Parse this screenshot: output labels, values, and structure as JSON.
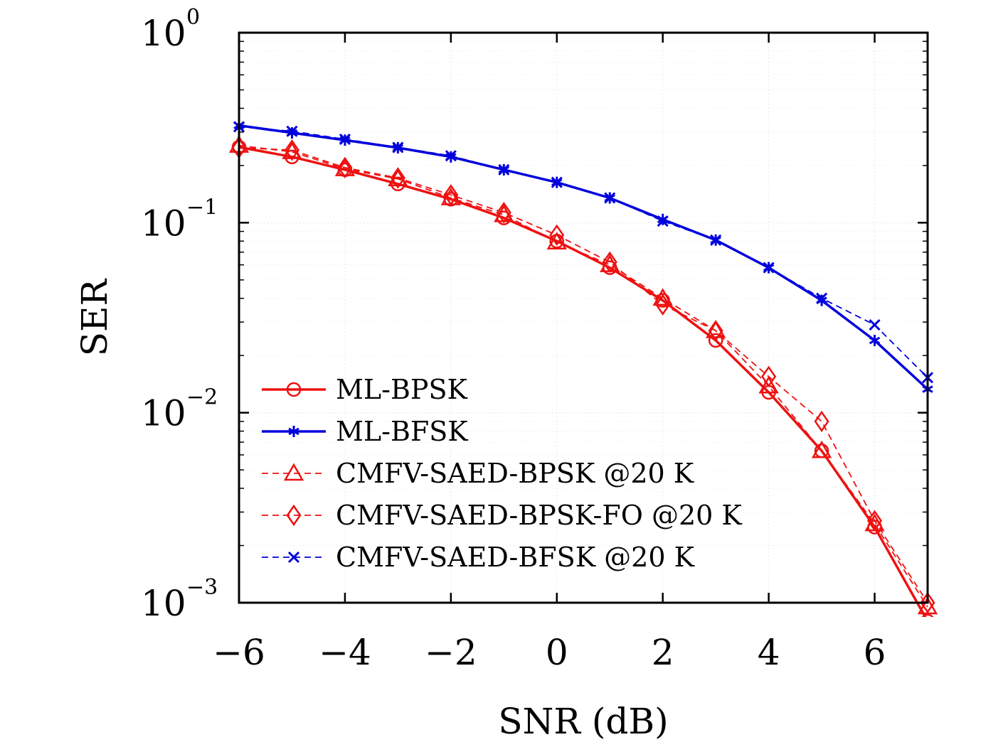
{
  "chart_data": {
    "type": "line",
    "xlabel": "SNR (dB)",
    "ylabel": "SER",
    "xlim": [
      -6,
      7
    ],
    "ylim": [
      0.001,
      1
    ],
    "yscale": "log",
    "x_ticks": [
      -6,
      -4,
      -2,
      0,
      2,
      4,
      6
    ],
    "x_tick_labels": [
      "−6",
      "−4",
      "−2",
      "0",
      "2",
      "4",
      "6"
    ],
    "y_ticks": [
      {
        "value": 1,
        "base": "10",
        "exp": "0"
      },
      {
        "value": 0.1,
        "base": "10",
        "exp": "−1"
      },
      {
        "value": 0.01,
        "base": "10",
        "exp": "−2"
      },
      {
        "value": 0.001,
        "base": "10",
        "exp": "−3"
      }
    ],
    "grid": true,
    "legend_position": "bottom-left",
    "x": [
      -6,
      -5,
      -4,
      -3,
      -2,
      -1,
      0,
      1,
      2,
      3,
      4,
      5,
      6,
      7
    ],
    "series": [
      {
        "name": "ML-BPSK",
        "color": "#ee1111",
        "line": "solid",
        "marker": "circle",
        "values": [
          0.25,
          0.222,
          0.19,
          0.16,
          0.133,
          0.106,
          0.08,
          0.058,
          0.039,
          0.024,
          0.0128,
          0.0063,
          0.0025,
          0.0008
        ]
      },
      {
        "name": "ML-BFSK",
        "color": "#0000dd",
        "line": "solid",
        "marker": "asterisk",
        "values": [
          0.325,
          0.297,
          0.272,
          0.248,
          0.222,
          0.19,
          0.163,
          0.135,
          0.104,
          0.081,
          0.058,
          0.039,
          0.024,
          0.0133
        ]
      },
      {
        "name": "CMFV-SAED-BPSK @20 K",
        "color": "#ee1111",
        "line": "dashed",
        "marker": "triangle",
        "values": [
          0.255,
          0.236,
          0.192,
          0.17,
          0.135,
          0.11,
          0.079,
          0.06,
          0.04,
          0.027,
          0.0138,
          0.0063,
          0.0026,
          0.00095
        ]
      },
      {
        "name": "CMFV-SAED-BPSK-FO @20 K",
        "color": "#ee1111",
        "line": "dashed",
        "marker": "diamond",
        "values": [
          0.248,
          0.241,
          0.195,
          0.172,
          0.14,
          0.113,
          0.086,
          0.062,
          0.037,
          0.027,
          0.0155,
          0.009,
          0.0027,
          0.001
        ]
      },
      {
        "name": "CMFV-SAED-BFSK @20 K",
        "color": "#0000dd",
        "line": "dashed",
        "marker": "x",
        "values": [
          0.32,
          0.303,
          0.275,
          0.249,
          0.225,
          0.19,
          0.163,
          0.135,
          0.102,
          0.081,
          0.058,
          0.04,
          0.029,
          0.0153
        ]
      }
    ]
  }
}
